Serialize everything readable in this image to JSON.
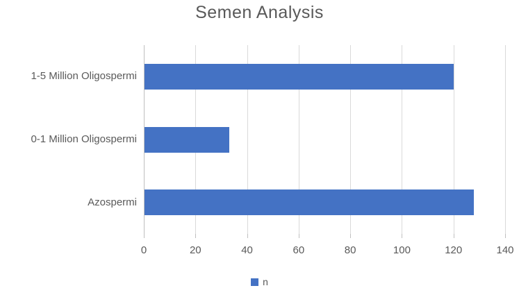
{
  "chart_data": {
    "type": "bar",
    "orientation": "horizontal",
    "title": "Semen Analysis",
    "categories": [
      "1-5 Million Oligospermi",
      "0-1 Million Oligospermi",
      "Azospermi"
    ],
    "series": [
      {
        "name": "n",
        "values": [
          120,
          33,
          128
        ]
      }
    ],
    "xlabel": "",
    "ylabel": "",
    "xlim": [
      0,
      140
    ],
    "xticks": [
      0,
      20,
      40,
      60,
      80,
      100,
      120,
      140
    ],
    "grid": true,
    "legend_position": "bottom-center",
    "colors": {
      "bar": "#4472C4",
      "text": "#595959",
      "gridline": "#d9d9d9",
      "axis_line": "#bfbfbf"
    }
  }
}
